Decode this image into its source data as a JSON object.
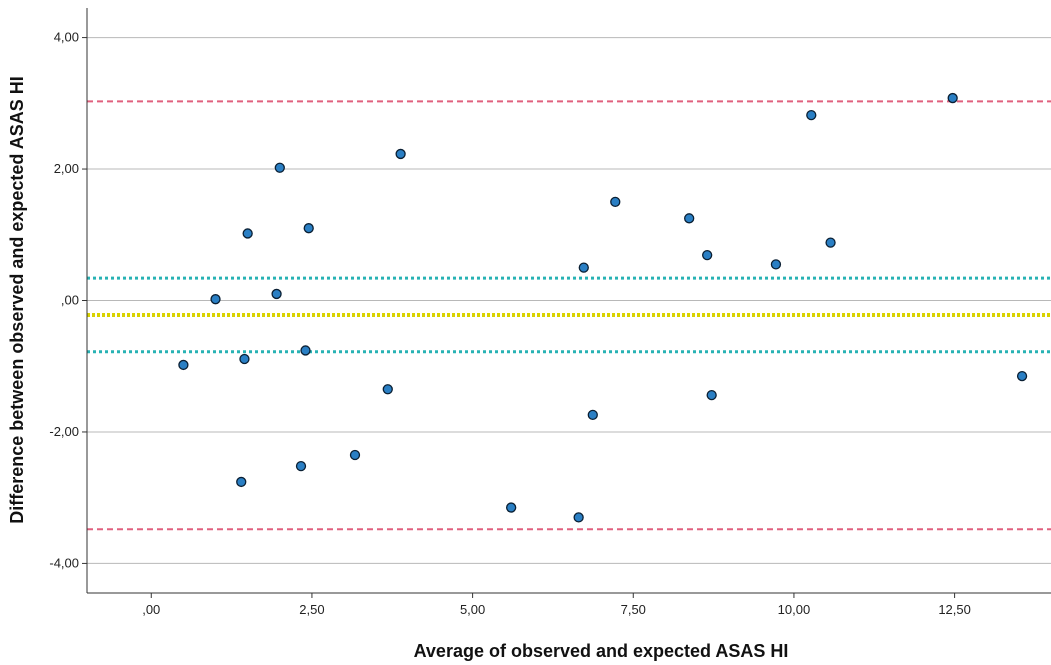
{
  "chart_data": {
    "type": "scatter",
    "title": "",
    "xlabel": "Average of observed and expected ASAS HI",
    "ylabel": "Difference between observed and expected ASAS HI",
    "xlim": [
      -1.0,
      14.0
    ],
    "ylim": [
      -4.45,
      4.45
    ],
    "x_ticks": [
      0,
      2.5,
      5,
      7.5,
      10,
      12.5
    ],
    "x_tick_labels": [
      ",00",
      "2,50",
      "5,00",
      "7,50",
      "10,00",
      "12,50"
    ],
    "y_ticks": [
      -4,
      -2,
      0,
      2,
      4
    ],
    "y_tick_labels": [
      "-4,00",
      "-2,00",
      ",00",
      "2,00",
      "4,00"
    ],
    "grid": "horizontal",
    "colors": {
      "point_fill": "#2a7fc4",
      "point_stroke": "#0a1f33",
      "limits_of_agreement": "#e0607e",
      "confidence_interval": "#28b2b4",
      "mean_difference": "#d8d200",
      "grid": "#b8b8b8"
    },
    "reference_lines": [
      {
        "role": "upper-limit-of-agreement",
        "y": 3.03,
        "style": "dashed"
      },
      {
        "role": "upper-confidence-bound",
        "y": 0.34,
        "style": "dotted"
      },
      {
        "role": "mean-difference",
        "y": -0.22,
        "style": "dotted"
      },
      {
        "role": "lower-confidence-bound",
        "y": -0.78,
        "style": "dotted"
      },
      {
        "role": "lower-limit-of-agreement",
        "y": -3.48,
        "style": "dashed"
      }
    ],
    "points": [
      {
        "x": 0.5,
        "y": -0.98
      },
      {
        "x": 1.0,
        "y": 0.02
      },
      {
        "x": 1.4,
        "y": -2.76
      },
      {
        "x": 1.45,
        "y": -0.89
      },
      {
        "x": 1.5,
        "y": 1.02
      },
      {
        "x": 1.95,
        "y": 0.1
      },
      {
        "x": 2.0,
        "y": 2.02
      },
      {
        "x": 2.33,
        "y": -2.52
      },
      {
        "x": 2.4,
        "y": -0.76
      },
      {
        "x": 2.45,
        "y": 1.1
      },
      {
        "x": 3.17,
        "y": -2.35
      },
      {
        "x": 3.68,
        "y": -1.35
      },
      {
        "x": 3.88,
        "y": 2.23
      },
      {
        "x": 5.6,
        "y": -3.15
      },
      {
        "x": 6.65,
        "y": -3.3
      },
      {
        "x": 6.73,
        "y": 0.5
      },
      {
        "x": 6.87,
        "y": -1.74
      },
      {
        "x": 7.22,
        "y": 1.5
      },
      {
        "x": 8.37,
        "y": 1.25
      },
      {
        "x": 8.65,
        "y": 0.69
      },
      {
        "x": 8.72,
        "y": -1.44
      },
      {
        "x": 9.72,
        "y": 0.55
      },
      {
        "x": 10.27,
        "y": 2.82
      },
      {
        "x": 10.57,
        "y": 0.88
      },
      {
        "x": 12.47,
        "y": 3.08
      },
      {
        "x": 13.55,
        "y": -1.15
      }
    ]
  }
}
